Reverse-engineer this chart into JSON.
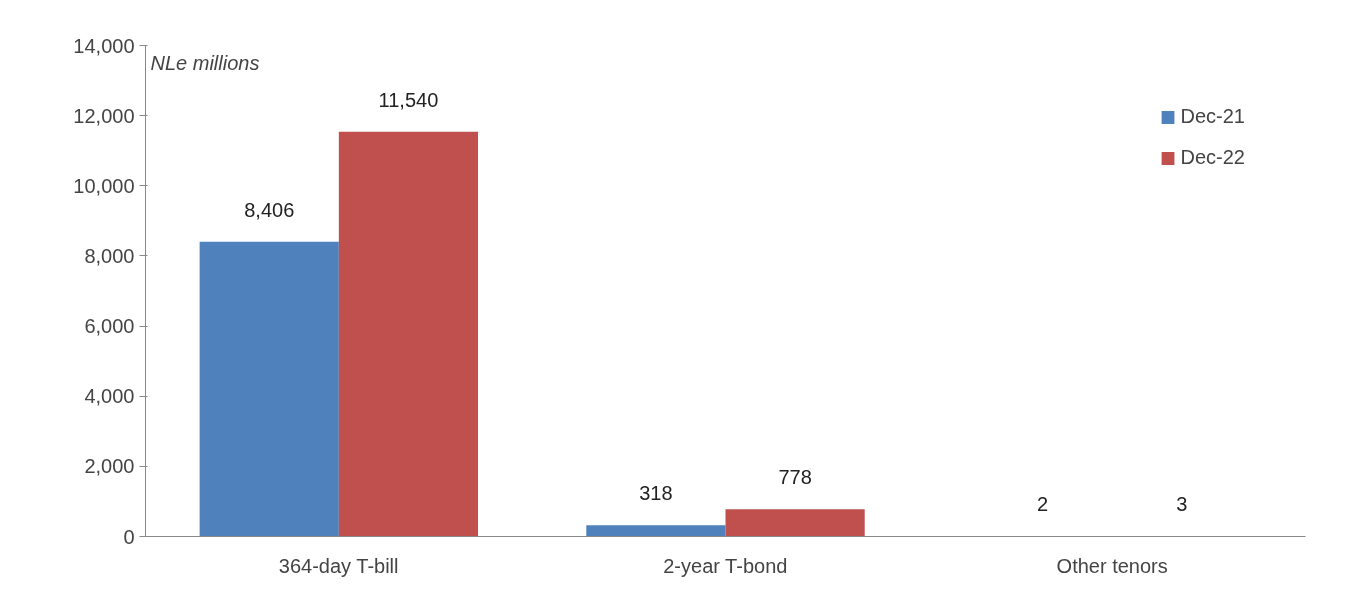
{
  "chart_data": {
    "type": "bar",
    "ylabel": "NLe millions",
    "categories": [
      "364-day T-bill",
      "2-year T-bond",
      "Other tenors"
    ],
    "series": [
      {
        "name": "Dec-21",
        "color": "#4f81bd",
        "values": [
          8406,
          318,
          2
        ],
        "value_labels": [
          "8,406",
          "318",
          "2"
        ]
      },
      {
        "name": "Dec-22",
        "color": "#c0504d",
        "values": [
          11540,
          778,
          3
        ],
        "value_labels": [
          "11,540",
          "778",
          "3"
        ]
      }
    ],
    "ylim": [
      0,
      14000
    ],
    "yticks": [
      0,
      {
        "value": 2000,
        "label": "2,000"
      },
      {
        "value": 4000,
        "label": "4,000"
      },
      {
        "value": 6000,
        "label": "6,000"
      },
      {
        "value": 8000,
        "label": "8,000"
      },
      {
        "value": 10000,
        "label": "10,000"
      },
      {
        "value": 12000,
        "label": "12,000"
      },
      {
        "value": 14000,
        "label": "14,000"
      }
    ],
    "grid": false,
    "legend": "top right"
  }
}
